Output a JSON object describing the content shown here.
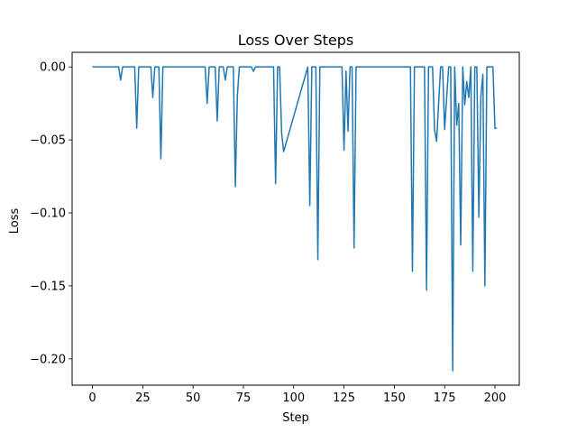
{
  "chart_data": {
    "type": "line",
    "title": "Loss Over Steps",
    "xlabel": "Step",
    "ylabel": "Loss",
    "xlim": [
      -10.1,
      212.1
    ],
    "ylim": [
      -0.218,
      0.01
    ],
    "xticks": [
      0,
      25,
      50,
      75,
      100,
      125,
      150,
      175,
      200
    ],
    "xtick_labels": [
      "0",
      "25",
      "50",
      "75",
      "100",
      "125",
      "150",
      "175",
      "200"
    ],
    "yticks": [
      0.0,
      -0.05,
      -0.1,
      -0.15,
      -0.2
    ],
    "ytick_labels": [
      "0.00",
      "−0.05",
      "−0.10",
      "−0.15",
      "−0.20"
    ],
    "grid": false,
    "series": [
      {
        "color": "#1f77b4",
        "x": [
          0,
          13,
          14,
          15,
          21,
          22,
          23,
          29,
          30,
          31,
          33,
          34,
          35,
          56,
          57,
          58,
          61,
          62,
          63,
          65,
          66,
          67,
          70,
          71,
          72,
          73,
          79,
          80,
          81,
          90,
          91,
          92,
          93,
          94,
          95,
          107,
          108,
          109,
          111,
          112,
          113,
          124,
          125,
          126,
          127,
          128,
          129,
          130,
          131,
          140,
          141,
          158,
          159,
          160,
          165,
          166,
          167,
          169,
          170,
          171,
          173,
          174,
          175,
          177,
          178,
          179,
          180,
          181,
          182,
          183,
          184,
          185,
          186,
          187,
          188,
          189,
          190,
          191,
          192,
          193,
          194,
          195,
          196,
          197,
          198,
          199,
          200,
          201
        ],
        "y": [
          0.0,
          0.0,
          -0.009,
          0.0,
          0.0,
          -0.042,
          0.0,
          0.0,
          -0.021,
          0.0,
          0.0,
          -0.063,
          0.0,
          0.0,
          -0.025,
          0.0,
          0.0,
          -0.037,
          0.0,
          0.0,
          -0.009,
          0.0,
          0.0,
          -0.082,
          -0.02,
          0.0,
          0.0,
          -0.003,
          0.0,
          0.0,
          -0.08,
          0.0,
          0.0,
          -0.045,
          -0.058,
          0.0,
          -0.095,
          0.0,
          0.0,
          -0.132,
          0.0,
          0.0,
          -0.057,
          -0.003,
          -0.044,
          0.0,
          0.0,
          -0.124,
          0.0,
          0.0,
          0.0,
          0.0,
          -0.14,
          0.0,
          0.0,
          -0.153,
          0.0,
          0.0,
          -0.043,
          -0.051,
          0.0,
          0.0,
          -0.043,
          0.0,
          0.0,
          -0.208,
          0.0,
          -0.04,
          -0.025,
          -0.122,
          0.0,
          -0.026,
          -0.01,
          -0.021,
          0.0,
          -0.14,
          0.0,
          0.0,
          -0.103,
          -0.02,
          -0.005,
          -0.15,
          0.0,
          0.0,
          0.0,
          0.0,
          -0.042,
          -0.042
        ]
      }
    ]
  }
}
